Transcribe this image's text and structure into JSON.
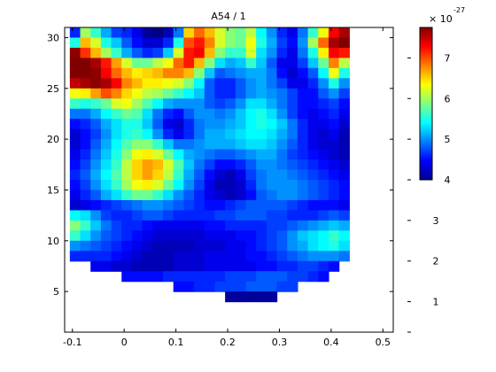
{
  "chart_data": {
    "type": "heatmap",
    "title": "A54 / 1",
    "xlabel": "",
    "ylabel": "",
    "x_ticks": [
      "-0.1",
      "0",
      "0.1",
      "0.2",
      "0.3",
      "0.4",
      "0.5"
    ],
    "y_ticks": [
      "5",
      "10",
      "15",
      "20",
      "25",
      "30"
    ],
    "xlim": [
      -0.115,
      0.52
    ],
    "ylim": [
      1,
      31
    ],
    "colorscale": "jet",
    "colorbar": {
      "range": [
        4,
        7.75
      ],
      "ticks": [
        "4",
        "5",
        "6",
        "7"
      ],
      "exponent_base": "× 10",
      "exponent": "-27",
      "ticks_far": [
        "1",
        "2",
        "3"
      ]
    },
    "grid_x_start": -0.105,
    "grid_x_step": 0.02,
    "grid_y_start": 31,
    "grid_y_step": -1,
    "rows": [
      [
        4.6,
        6.0,
        5.6,
        5.1,
        4.7,
        4.6,
        4.4,
        4.1,
        4.0,
        4.2,
        4.9,
        6.5,
        6.9,
        6.6,
        6.2,
        5.9,
        5.8,
        6.1,
        5.4,
        5.0,
        4.6,
        4.4,
        4.9,
        5.6,
        6.3,
        7.3,
        7.6
      ],
      [
        5.5,
        6.6,
        6.2,
        5.5,
        5.2,
        4.8,
        4.5,
        4.3,
        4.3,
        4.6,
        5.5,
        7.0,
        7.2,
        6.8,
        6.2,
        5.9,
        5.8,
        6.3,
        5.5,
        5.1,
        4.7,
        4.5,
        5.0,
        6.0,
        6.9,
        7.6,
        7.8
      ],
      [
        7.7,
        7.1,
        6.6,
        6.0,
        5.6,
        5.1,
        4.8,
        4.6,
        4.7,
        5.2,
        6.2,
        7.2,
        7.3,
        6.6,
        5.9,
        5.6,
        5.6,
        6.2,
        5.3,
        5.0,
        4.6,
        4.4,
        4.9,
        5.5,
        6.4,
        7.3,
        7.2
      ],
      [
        7.8,
        7.8,
        7.6,
        7.2,
        6.7,
        6.2,
        5.8,
        5.8,
        6.1,
        6.3,
        6.9,
        7.2,
        6.6,
        5.9,
        5.3,
        5.1,
        5.2,
        5.6,
        5.2,
        4.8,
        4.4,
        4.4,
        4.7,
        5.2,
        5.8,
        6.8,
        6.1
      ],
      [
        7.9,
        7.8,
        7.7,
        7.3,
        6.9,
        6.6,
        6.4,
        6.5,
        6.6,
        6.8,
        6.8,
        6.6,
        5.9,
        5.2,
        4.8,
        4.9,
        5.0,
        5.1,
        5.1,
        4.9,
        4.5,
        4.3,
        4.5,
        4.8,
        5.4,
        6.3,
        5.5
      ],
      [
        7.5,
        7.6,
        7.7,
        7.6,
        7.3,
        6.8,
        6.6,
        6.4,
        6.4,
        6.3,
        6.2,
        5.9,
        5.4,
        4.8,
        4.6,
        4.6,
        4.8,
        5.0,
        5.1,
        4.9,
        4.7,
        4.4,
        4.4,
        4.6,
        5.0,
        5.5,
        5.0
      ],
      [
        6.3,
        6.4,
        6.7,
        7.0,
        6.8,
        6.5,
        6.3,
        6.1,
        6.0,
        5.8,
        5.6,
        5.4,
        5.2,
        4.8,
        4.6,
        4.6,
        4.8,
        5.0,
        5.1,
        5.0,
        4.9,
        4.7,
        4.5,
        4.5,
        4.8,
        5.0,
        4.7
      ],
      [
        5.6,
        5.5,
        5.6,
        5.8,
        6.2,
        6.3,
        6.0,
        5.7,
        5.4,
        5.1,
        5.0,
        5.0,
        5.0,
        4.8,
        4.7,
        4.8,
        5.0,
        5.3,
        5.3,
        5.1,
        4.9,
        4.7,
        4.5,
        4.5,
        4.6,
        4.7,
        4.5
      ],
      [
        4.9,
        4.9,
        5.1,
        5.4,
        5.6,
        5.8,
        5.7,
        5.3,
        4.9,
        4.6,
        4.5,
        4.8,
        5.0,
        5.0,
        4.9,
        5.0,
        5.2,
        5.4,
        5.5,
        5.3,
        5.0,
        4.7,
        4.5,
        4.4,
        4.5,
        4.6,
        4.4
      ],
      [
        4.5,
        4.6,
        4.8,
        5.1,
        5.3,
        5.5,
        5.5,
        5.2,
        4.8,
        4.4,
        4.3,
        4.6,
        4.9,
        5.0,
        5.0,
        5.1,
        5.2,
        5.4,
        5.5,
        5.4,
        5.2,
        4.9,
        4.6,
        4.4,
        4.4,
        4.5,
        4.3
      ],
      [
        4.3,
        4.5,
        4.7,
        5.0,
        5.3,
        5.5,
        5.6,
        5.4,
        5.0,
        4.6,
        4.4,
        4.6,
        4.9,
        5.1,
        5.1,
        5.2,
        5.3,
        5.4,
        5.4,
        5.3,
        5.1,
        4.9,
        4.6,
        4.4,
        4.3,
        4.4,
        4.2
      ],
      [
        4.3,
        4.5,
        4.8,
        5.1,
        5.4,
        5.7,
        5.9,
        5.9,
        5.6,
        5.2,
        4.9,
        4.9,
        5.0,
        5.1,
        5.1,
        5.1,
        5.2,
        5.3,
        5.3,
        5.2,
        5.0,
        4.8,
        4.6,
        4.4,
        4.3,
        4.3,
        4.2
      ],
      [
        4.4,
        4.6,
        4.9,
        5.2,
        5.5,
        5.9,
        6.3,
        6.4,
        6.2,
        5.8,
        5.4,
        5.1,
        5.0,
        4.9,
        4.8,
        4.8,
        4.9,
        5.0,
        5.1,
        5.1,
        4.9,
        4.7,
        4.6,
        4.5,
        4.4,
        4.3,
        4.2
      ],
      [
        4.5,
        4.7,
        5.0,
        5.3,
        5.6,
        6.1,
        6.5,
        6.7,
        6.6,
        6.2,
        5.7,
        5.2,
        4.9,
        4.7,
        4.5,
        4.5,
        4.6,
        4.8,
        5.0,
        5.0,
        4.9,
        4.8,
        4.7,
        4.6,
        4.5,
        4.4,
        4.3
      ],
      [
        4.6,
        4.8,
        5.1,
        5.4,
        5.7,
        6.1,
        6.5,
        6.7,
        6.5,
        6.1,
        5.6,
        5.1,
        4.8,
        4.5,
        4.3,
        4.2,
        4.4,
        4.7,
        4.9,
        5.0,
        5.0,
        4.9,
        4.8,
        4.7,
        4.6,
        4.5,
        4.4
      ],
      [
        4.5,
        4.7,
        5.0,
        5.3,
        5.6,
        6.0,
        6.3,
        6.4,
        6.2,
        5.8,
        5.4,
        5.0,
        4.7,
        4.4,
        4.2,
        4.2,
        4.3,
        4.6,
        4.9,
        5.0,
        5.0,
        5.0,
        4.9,
        4.8,
        4.7,
        4.6,
        4.5
      ],
      [
        4.4,
        4.6,
        4.8,
        5.1,
        5.3,
        5.6,
        5.8,
        5.8,
        5.6,
        5.3,
        5.0,
        4.8,
        4.6,
        4.4,
        4.3,
        4.2,
        4.3,
        4.5,
        4.8,
        4.9,
        5.0,
        5.0,
        4.9,
        4.8,
        4.7,
        4.6,
        4.5
      ],
      [
        4.3,
        4.4,
        4.5,
        4.6,
        4.7,
        4.8,
        4.9,
        5.0,
        5.0,
        4.9,
        4.8,
        4.7,
        4.6,
        4.5,
        4.5,
        4.6,
        4.7,
        4.8,
        4.8,
        4.8,
        4.8,
        4.7,
        4.6,
        4.5,
        4.5,
        4.5,
        4.4
      ],
      [
        5.4,
        5.3,
        5.0,
        4.7,
        4.6,
        4.6,
        4.7,
        4.8,
        4.8,
        4.7,
        4.6,
        4.6,
        4.6,
        4.6,
        4.7,
        4.7,
        4.8,
        4.8,
        4.8,
        4.7,
        4.7,
        4.6,
        4.6,
        4.6,
        4.7,
        4.8,
        4.7
      ],
      [
        5.9,
        5.6,
        5.2,
        4.9,
        4.7,
        4.6,
        4.6,
        4.5,
        4.4,
        4.4,
        4.4,
        4.4,
        4.4,
        4.5,
        4.5,
        4.6,
        4.6,
        4.6,
        4.6,
        4.7,
        4.7,
        4.8,
        4.9,
        5.0,
        5.1,
        5.2,
        5.1
      ],
      [
        5.6,
        5.3,
        5.0,
        4.8,
        4.7,
        4.6,
        4.5,
        4.4,
        4.3,
        4.3,
        4.3,
        4.3,
        4.3,
        4.4,
        4.4,
        4.4,
        4.5,
        4.5,
        4.6,
        4.7,
        4.8,
        5.0,
        5.2,
        5.3,
        5.4,
        5.6,
        5.4
      ],
      [
        5.0,
        4.9,
        4.8,
        4.7,
        4.6,
        4.5,
        4.4,
        4.3,
        4.2,
        4.2,
        4.2,
        4.2,
        4.3,
        4.3,
        4.3,
        4.4,
        4.4,
        4.5,
        4.6,
        4.7,
        4.8,
        5.0,
        5.1,
        5.3,
        5.4,
        5.5,
        5.3
      ],
      [
        4.6,
        4.6,
        4.6,
        4.6,
        4.5,
        4.4,
        4.3,
        4.2,
        4.2,
        4.2,
        4.3,
        4.3,
        4.3,
        4.4,
        4.4,
        4.4,
        4.4,
        4.5,
        4.5,
        4.6,
        4.7,
        4.8,
        4.9,
        5.0,
        5.0,
        5.0,
        4.9
      ],
      [
        null,
        null,
        4.4,
        4.4,
        4.3,
        4.3,
        4.2,
        4.2,
        4.2,
        4.2,
        4.3,
        4.3,
        4.3,
        4.4,
        4.4,
        4.4,
        4.4,
        4.4,
        4.5,
        4.5,
        4.6,
        4.6,
        4.7,
        4.7,
        4.6,
        4.5,
        null
      ],
      [
        null,
        null,
        null,
        null,
        null,
        4.5,
        4.5,
        4.5,
        4.5,
        4.6,
        4.6,
        4.6,
        4.6,
        4.6,
        4.6,
        4.7,
        4.7,
        4.7,
        4.8,
        4.8,
        4.8,
        4.7,
        4.7,
        4.6,
        4.5,
        null,
        null
      ],
      [
        null,
        null,
        null,
        null,
        null,
        null,
        null,
        null,
        null,
        null,
        4.5,
        4.5,
        4.6,
        4.6,
        4.7,
        4.7,
        4.7,
        4.8,
        4.8,
        4.8,
        4.7,
        4.7,
        null,
        null,
        null,
        null,
        null
      ],
      [
        null,
        null,
        null,
        null,
        null,
        null,
        null,
        null,
        null,
        null,
        null,
        null,
        null,
        null,
        null,
        4.1,
        4.1,
        4.1,
        4.1,
        4.1,
        null,
        null,
        null,
        null,
        null,
        null,
        null
      ]
    ]
  }
}
